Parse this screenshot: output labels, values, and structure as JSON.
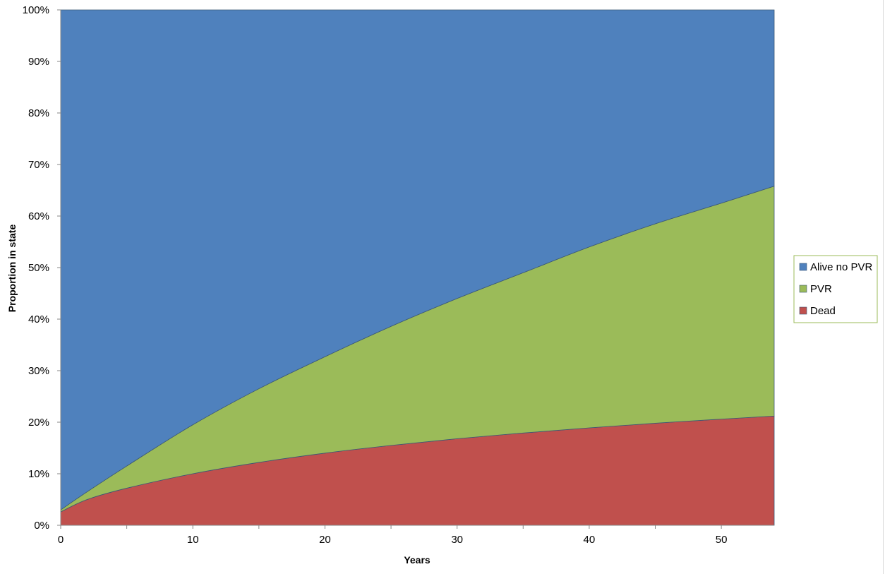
{
  "chart_data": {
    "type": "area",
    "stacked": true,
    "percent_stacked": true,
    "title": "",
    "xlabel": "Years",
    "ylabel": "Proportion in state",
    "xlim": [
      0,
      54
    ],
    "ylim": [
      0,
      100
    ],
    "x_ticks": [
      "0",
      "10",
      "20",
      "30",
      "40",
      "50"
    ],
    "y_ticks": [
      "0%",
      "10%",
      "20%",
      "30%",
      "40%",
      "50%",
      "60%",
      "70%",
      "80%",
      "90%",
      "100%"
    ],
    "grid": false,
    "legend_position": "right",
    "x": [
      0,
      2,
      5,
      10,
      15,
      20,
      25,
      30,
      35,
      40,
      45,
      50,
      54
    ],
    "series": [
      {
        "name": "Dead",
        "color": "#c0504d",
        "values": [
          2.6,
          5.0,
          7.2,
          10.0,
          12.2,
          14.0,
          15.5,
          16.8,
          17.9,
          18.9,
          19.8,
          20.6,
          21.2
        ]
      },
      {
        "name": "PVR",
        "color": "#9bbb59",
        "values": [
          0.4,
          1.5,
          4.3,
          9.5,
          14.3,
          18.7,
          23.1,
          27.2,
          31.1,
          35.1,
          38.7,
          41.9,
          44.6
        ]
      },
      {
        "name": "Alive no PVR",
        "color": "#4f81bd",
        "values": [
          97.0,
          93.5,
          88.5,
          80.5,
          73.5,
          67.3,
          61.4,
          56.0,
          51.0,
          46.0,
          41.5,
          37.5,
          34.2
        ]
      }
    ],
    "legend": [
      "Alive no PVR",
      "PVR",
      "Dead"
    ]
  }
}
